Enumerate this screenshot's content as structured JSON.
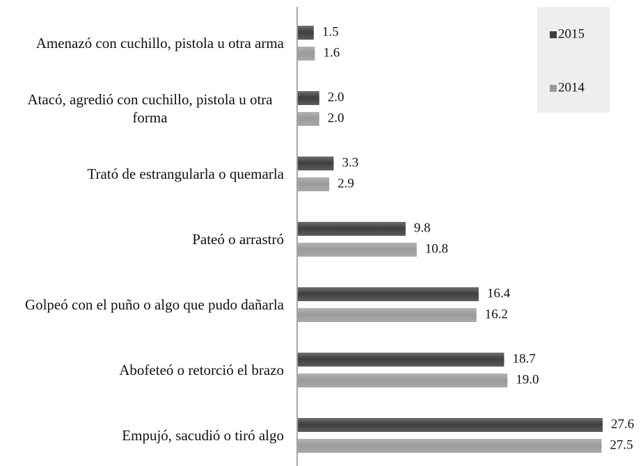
{
  "chart_data": {
    "type": "bar",
    "orientation": "horizontal",
    "categories": [
      "Amenazó con cuchillo, pistola u otra arma",
      "Atacó, agredió con cuchillo, pistola u otra forma",
      "Trató de estrangularla o quemarla",
      "Pateó o arrastró",
      "Golpeó con el puño o algo que pudo dañarla",
      "Abofeteó o retorció el brazo",
      "Empujó, sacudió o tiró algo"
    ],
    "series": [
      {
        "name": "2015",
        "color": "#3f3f3f",
        "values": [
          1.5,
          2.0,
          3.3,
          9.8,
          16.4,
          18.7,
          27.6
        ],
        "value_labels": [
          "1.5",
          "2.0",
          "3.3",
          "9.8",
          "16.4",
          "18.7",
          "27.6"
        ]
      },
      {
        "name": "2014",
        "color": "#9a9a9a",
        "values": [
          1.6,
          2.0,
          2.9,
          10.8,
          16.2,
          19.0,
          27.5
        ],
        "value_labels": [
          "1.6",
          "2.0",
          "2.9",
          "10.8",
          "16.2",
          "19.0",
          "27.5"
        ]
      }
    ],
    "legend": "top-right"
  }
}
